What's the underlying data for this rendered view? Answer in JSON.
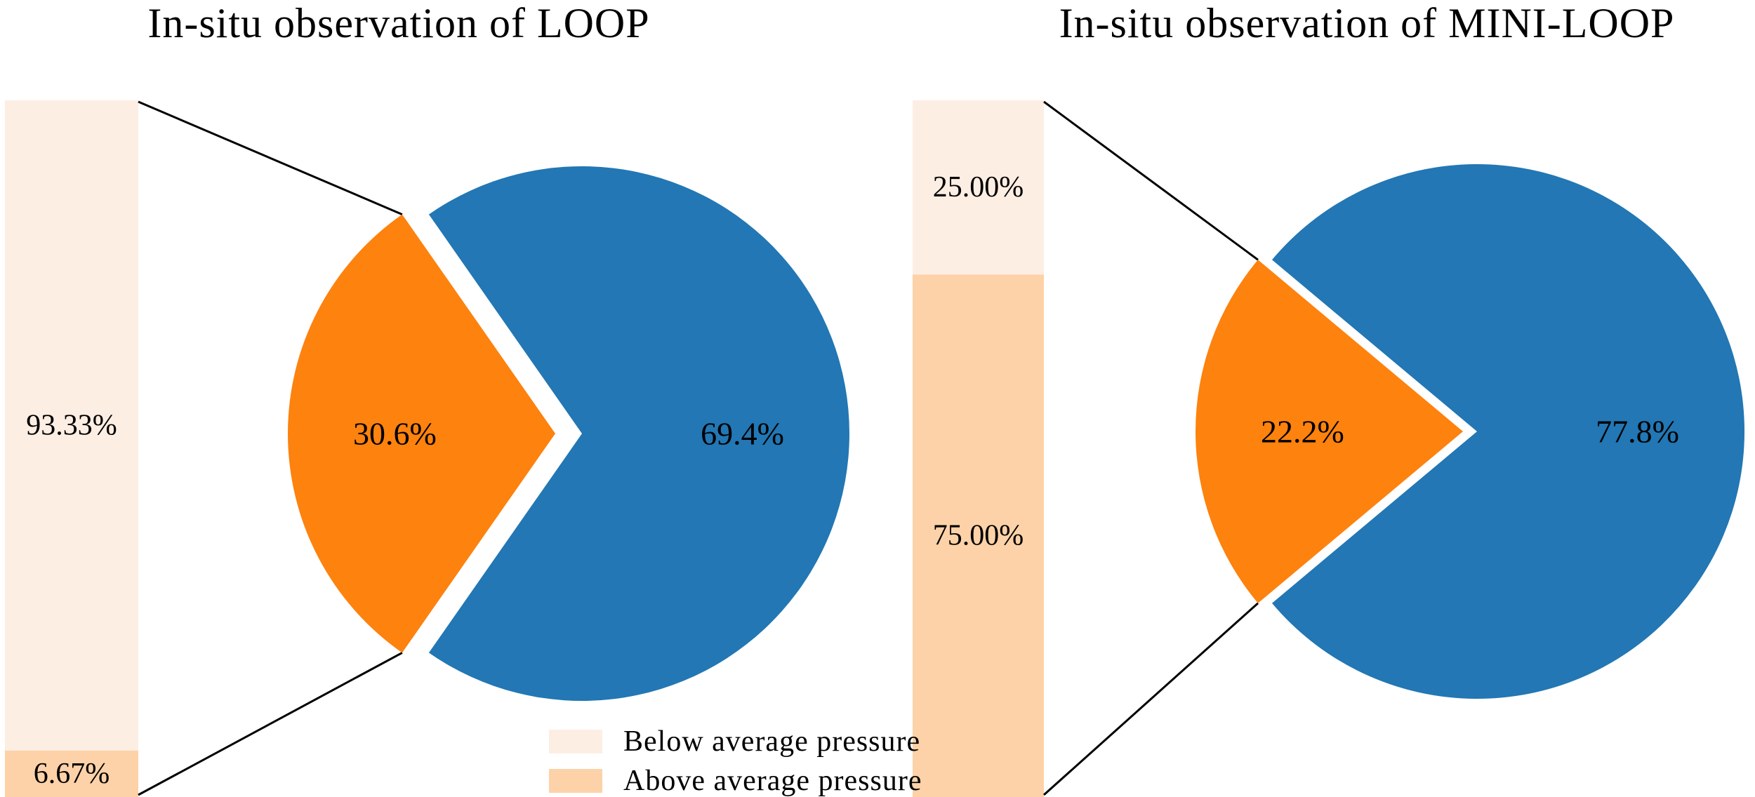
{
  "figure": {
    "background": "#ffffff",
    "colors": {
      "blue": "#2277b4",
      "orange": "#fd820e",
      "below_avg": "#fdeee3",
      "above_avg": "#fdd2a8",
      "connector": "#000000",
      "text": "#000000"
    },
    "legend": {
      "position": "bottom-center-left",
      "items": [
        {
          "label": "Below average pressure",
          "color_key": "below_avg"
        },
        {
          "label": "Above average pressure",
          "color_key": "above_avg"
        }
      ]
    }
  },
  "chart_data": [
    {
      "type": "pie",
      "variant": "bar-of-pie",
      "title": "In-situ observation of LOOP",
      "slices": [
        {
          "name": "main-share",
          "label": "69.4%",
          "value": 69.4,
          "color_key": "blue"
        },
        {
          "name": "detailed-share",
          "label": "30.6%",
          "value": 30.6,
          "color_key": "orange"
        }
      ],
      "bar_breakdown": [
        {
          "name": "Below average pressure",
          "label": "93.33%",
          "value": 93.33,
          "color_key": "below_avg"
        },
        {
          "name": "Above average pressure",
          "label": "6.67%",
          "value": 6.67,
          "color_key": "above_avg"
        }
      ]
    },
    {
      "type": "pie",
      "variant": "bar-of-pie",
      "title": "In-situ observation of MINI-LOOP",
      "slices": [
        {
          "name": "main-share",
          "label": "77.8%",
          "value": 77.8,
          "color_key": "blue"
        },
        {
          "name": "detailed-share",
          "label": "22.2%",
          "value": 22.2,
          "color_key": "orange"
        }
      ],
      "bar_breakdown": [
        {
          "name": "Below average pressure",
          "label": "25.00%",
          "value": 25.0,
          "color_key": "below_avg"
        },
        {
          "name": "Above average pressure",
          "label": "75.00%",
          "value": 75.0,
          "color_key": "above_avg"
        }
      ]
    }
  ]
}
